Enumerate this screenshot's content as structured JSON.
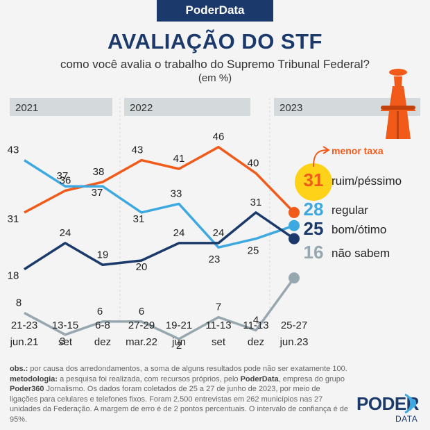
{
  "header": {
    "brand": "PoderData",
    "title": "AVALIAÇÃO DO STF",
    "subtitle": "como você avalia o trabalho do Supremo Tribunal Federal?",
    "unit": "(em %)"
  },
  "colors": {
    "ruim": "#f25a19",
    "regular": "#3ea8e0",
    "bom": "#1b3a6b",
    "naosabem": "#97a7af",
    "highlight": "#ffd21a",
    "year_bar": "#d4d9dc"
  },
  "chart_data": {
    "type": "line",
    "years": [
      "2021",
      "2022",
      "2023"
    ],
    "categories": [
      {
        "top": "21-23",
        "bottom": "jun.21"
      },
      {
        "top": "13-15",
        "bottom": "set"
      },
      {
        "top": "6-8",
        "bottom": "dez"
      },
      {
        "top": "27-29",
        "bottom": "mar.22"
      },
      {
        "top": "19-21",
        "bottom": "jun"
      },
      {
        "top": "11-13",
        "bottom": "set"
      },
      {
        "top": "11-13",
        "bottom": "dez"
      },
      {
        "top": "25-27",
        "bottom": "jun.23"
      }
    ],
    "series": [
      {
        "name": "ruim/péssimo",
        "key": "ruim",
        "values": [
          31,
          36,
          38,
          43,
          41,
          46,
          40,
          31
        ]
      },
      {
        "name": "regular",
        "key": "regular",
        "values": [
          43,
          37,
          37,
          31,
          33,
          23,
          25,
          28
        ]
      },
      {
        "name": "bom/ótimo",
        "key": "bom",
        "values": [
          18,
          24,
          19,
          20,
          24,
          24,
          31,
          25
        ]
      },
      {
        "name": "não sabem",
        "key": "naosabem",
        "values": [
          8,
          3,
          6,
          6,
          2,
          7,
          4,
          16
        ]
      }
    ],
    "annotation": "menor taxa"
  },
  "footnote": {
    "obs_label": "obs.:",
    "obs_text": " por causa dos arredondamentos, a soma de alguns resultados pode não ser exatamente 100.",
    "met_label": "metodologia:",
    "met_text_1": " a pesquisa foi realizada, com recursos próprios, pelo ",
    "met_bold_1": "PoderData",
    "met_text_2": ", empresa do grupo ",
    "met_bold_2": "Poder360",
    "met_text_3": " Jornalismo. Os dados foram coletados de 25 a 27 de junho de 2023, por meio de ligações para celulares e telefones fixos. Foram 2.500 entrevistas em 262 municípios nas 27 unidades da Federação. A margem de erro é de 2 pontos percentuais. O intervalo de confiança é de 95%."
  },
  "logo": {
    "word": "PODER",
    "sub": "DATA"
  }
}
